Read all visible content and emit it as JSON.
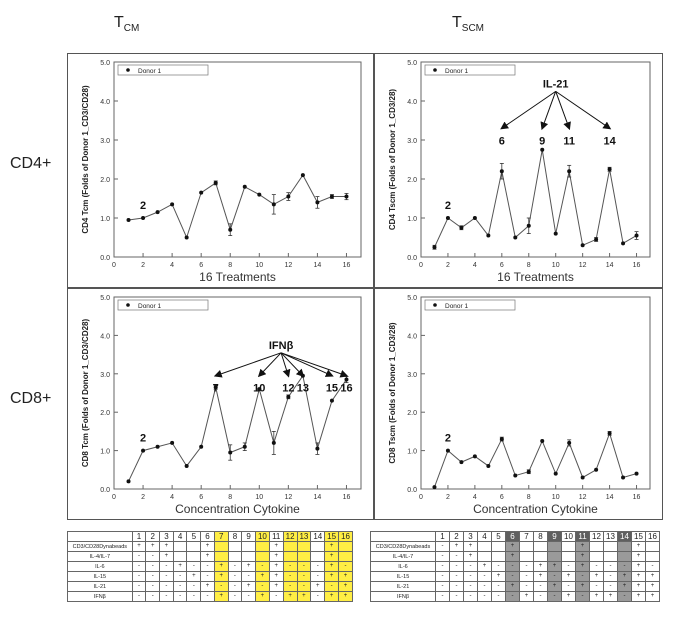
{
  "headers": {
    "col1_main": "T",
    "col1_sub": "CM",
    "col2_main": "T",
    "col2_sub": "SCM",
    "row1": "CD4+",
    "row2": "CD8+"
  },
  "chart_data": [
    {
      "type": "line",
      "ylabel": "CD4 Tcm (Folds of Donor 1_CD3/CD28)",
      "xlabel": "16 Treatments",
      "legend": "Donor 1",
      "legend_position": "top-left",
      "ylim": [
        0,
        5
      ],
      "xlim": [
        0,
        17
      ],
      "yticks": [
        "0.0",
        "1.0",
        "2.0",
        "3.0",
        "4.0",
        "5.0"
      ],
      "xticks": [
        "0",
        "2",
        "4",
        "6",
        "8",
        "10",
        "12",
        "14",
        "16"
      ],
      "x": [
        1,
        2,
        3,
        4,
        5,
        6,
        7,
        8,
        9,
        10,
        11,
        12,
        13,
        14,
        15,
        16
      ],
      "values": [
        0.95,
        1.0,
        1.15,
        1.35,
        0.5,
        1.65,
        1.9,
        0.7,
        1.8,
        1.6,
        1.35,
        1.55,
        2.1,
        1.4,
        1.55,
        1.55
      ],
      "errors": [
        0,
        0,
        0,
        0,
        0,
        0,
        0.05,
        0.15,
        0,
        0,
        0.25,
        0.1,
        0,
        0.15,
        0.05,
        0.08
      ],
      "annotation_label": "",
      "annotation_targets": [],
      "point_label": "2"
    },
    {
      "type": "line",
      "ylabel": "CD4 Tscm (Folds of Donor 1_CD3/28)",
      "xlabel": "16 Treatments",
      "legend": "Donor 1",
      "legend_position": "top-left",
      "ylim": [
        0,
        5
      ],
      "xlim": [
        0,
        17
      ],
      "yticks": [
        "0.0",
        "1.0",
        "2.0",
        "3.0",
        "4.0",
        "5.0"
      ],
      "xticks": [
        "0",
        "2",
        "4",
        "6",
        "8",
        "10",
        "12",
        "14",
        "16"
      ],
      "x": [
        1,
        2,
        3,
        4,
        5,
        6,
        7,
        8,
        9,
        10,
        11,
        12,
        13,
        14,
        15,
        16
      ],
      "values": [
        0.25,
        1.0,
        0.75,
        1.0,
        0.55,
        2.2,
        0.5,
        0.8,
        2.75,
        0.6,
        2.2,
        0.3,
        0.45,
        2.25,
        0.35,
        0.55
      ],
      "errors": [
        0.05,
        0,
        0.05,
        0,
        0,
        0.2,
        0,
        0.2,
        0,
        0,
        0.15,
        0,
        0.05,
        0.05,
        0,
        0.1
      ],
      "annotation_label": "IL-21",
      "annotation_targets": [
        "6",
        "9",
        "11",
        "14"
      ],
      "point_label": "2"
    },
    {
      "type": "line",
      "ylabel": "CD8 Tcm (Folds of Donor 1_CD3/CD28)",
      "xlabel": "Concentration Cytokine",
      "legend": "Donor 1",
      "legend_position": "top-left",
      "ylim": [
        0,
        5
      ],
      "xlim": [
        0,
        17
      ],
      "yticks": [
        "0.0",
        "1.0",
        "2.0",
        "3.0",
        "4.0",
        "5.0"
      ],
      "xticks": [
        "0",
        "2",
        "4",
        "6",
        "8",
        "10",
        "12",
        "14",
        "16"
      ],
      "x": [
        1,
        2,
        3,
        4,
        5,
        6,
        7,
        8,
        9,
        10,
        11,
        12,
        13,
        14,
        15,
        16
      ],
      "values": [
        0.2,
        1.0,
        1.1,
        1.2,
        0.6,
        1.1,
        2.65,
        0.95,
        1.1,
        2.6,
        1.2,
        2.4,
        2.95,
        1.05,
        2.3,
        2.85
      ],
      "errors": [
        0,
        0,
        0,
        0,
        0,
        0,
        0.05,
        0.2,
        0.1,
        0,
        0.3,
        0.05,
        0,
        0.15,
        0,
        0.08
      ],
      "annotation_label": "IFNβ",
      "annotation_targets": [
        "7",
        "10",
        "12",
        "13",
        "15",
        "16"
      ],
      "point_label": "2"
    },
    {
      "type": "line",
      "ylabel": "CD8 Tscm (Folds of Donor 1_CD3/28)",
      "xlabel": "Concentration Cytokine",
      "legend": "Donor 1",
      "legend_position": "top-left",
      "ylim": [
        0,
        5
      ],
      "xlim": [
        0,
        17
      ],
      "yticks": [
        "0.0",
        "1.0",
        "2.0",
        "3.0",
        "4.0",
        "5.0"
      ],
      "xticks": [
        "0",
        "2",
        "4",
        "6",
        "8",
        "10",
        "12",
        "14",
        "16"
      ],
      "x": [
        1,
        2,
        3,
        4,
        5,
        6,
        7,
        8,
        9,
        10,
        11,
        12,
        13,
        14,
        15,
        16
      ],
      "values": [
        0.05,
        1.0,
        0.7,
        0.85,
        0.6,
        1.3,
        0.35,
        0.45,
        1.25,
        0.4,
        1.2,
        0.3,
        0.5,
        1.45,
        0.3,
        0.4
      ],
      "errors": [
        0,
        0,
        0,
        0,
        0,
        0.05,
        0,
        0.05,
        0,
        0,
        0.08,
        0,
        0,
        0.05,
        0,
        0
      ],
      "annotation_label": "",
      "annotation_targets": [],
      "point_label": "2"
    }
  ],
  "tables": [
    {
      "numbers": [
        "1",
        "2",
        "3",
        "4",
        "5",
        "6",
        "7",
        "8",
        "9",
        "10",
        "11",
        "12",
        "13",
        "14",
        "15",
        "16"
      ],
      "highlight": "yellow",
      "highlight_cols": [
        7,
        10,
        12,
        13,
        15,
        16
      ],
      "rows": [
        {
          "label": "CD3/CD28Dynabeads",
          "cells": [
            "+",
            "+",
            "+",
            "",
            "",
            "+",
            "",
            "",
            "",
            "",
            "+",
            "",
            "",
            "",
            "+",
            ""
          ]
        },
        {
          "label": "IL-4/IL-7",
          "cells": [
            "-",
            "-",
            "+",
            "",
            "",
            "+",
            "",
            "",
            "",
            "",
            "+",
            "",
            "",
            "",
            "+",
            ""
          ]
        },
        {
          "label": "IL-6",
          "cells": [
            "-",
            "-",
            "-",
            "+",
            "-",
            "-",
            "+",
            "-",
            "+",
            "-",
            "+",
            "-",
            "-",
            "-",
            "+",
            "-"
          ]
        },
        {
          "label": "IL-15",
          "cells": [
            "-",
            "-",
            "-",
            "-",
            "+",
            "-",
            "+",
            "-",
            "-",
            "+",
            "+",
            "-",
            "-",
            "-",
            "+",
            "+"
          ]
        },
        {
          "label": "IL-21",
          "cells": [
            "-",
            "-",
            "-",
            "-",
            "-",
            "+",
            "-",
            "-",
            "+",
            "-",
            "+",
            "-",
            "-",
            "+",
            "-",
            "+"
          ]
        },
        {
          "label": "IFNβ",
          "cells": [
            "-",
            "-",
            "-",
            "-",
            "-",
            "-",
            "+",
            "-",
            "-",
            "+",
            "-",
            "+",
            "+",
            "-",
            "+",
            "+"
          ]
        }
      ]
    },
    {
      "numbers": [
        "1",
        "2",
        "3",
        "4",
        "5",
        "6",
        "7",
        "8",
        "9",
        "10",
        "11",
        "12",
        "13",
        "14",
        "15",
        "16"
      ],
      "highlight": "gray",
      "highlight_cols": [
        6,
        9,
        11,
        14
      ],
      "rows": [
        {
          "label": "CD3/CD28Dynabeads",
          "cells": [
            "-",
            "+",
            "+",
            "",
            "",
            "+",
            "",
            "",
            "",
            "",
            "+",
            "",
            "",
            "",
            "+",
            ""
          ]
        },
        {
          "label": "IL-4/IL-7",
          "cells": [
            "-",
            "-",
            "+",
            "",
            "",
            "+",
            "",
            "",
            "",
            "",
            "+",
            "",
            "",
            "",
            "+",
            ""
          ]
        },
        {
          "label": "IL-6",
          "cells": [
            "-",
            "-",
            "-",
            "+",
            "-",
            "-",
            "-",
            "+",
            "+",
            "-",
            "+",
            "-",
            "-",
            "-",
            "+",
            "-"
          ]
        },
        {
          "label": "IL-15",
          "cells": [
            "-",
            "-",
            "-",
            "-",
            "+",
            "-",
            "-",
            "+",
            "-",
            "+",
            "-",
            "+",
            "-",
            "+",
            "+",
            "+"
          ]
        },
        {
          "label": "IL-21",
          "cells": [
            "-",
            "-",
            "-",
            "-",
            "-",
            "+",
            "-",
            "-",
            "+",
            "-",
            "+",
            "-",
            "-",
            "+",
            "+",
            "+"
          ]
        },
        {
          "label": "IFNβ",
          "cells": [
            "-",
            "-",
            "-",
            "-",
            "-",
            "-",
            "+",
            "-",
            "-",
            "+",
            "-",
            "+",
            "+",
            "-",
            "+",
            "+"
          ]
        }
      ]
    }
  ]
}
